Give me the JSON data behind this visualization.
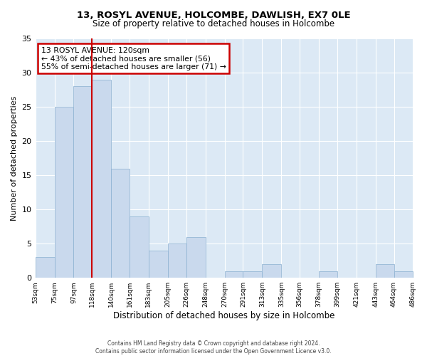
{
  "title": "13, ROSYL AVENUE, HOLCOMBE, DAWLISH, EX7 0LE",
  "subtitle": "Size of property relative to detached houses in Holcombe",
  "xlabel": "Distribution of detached houses by size in Holcombe",
  "ylabel": "Number of detached properties",
  "bin_edges": [
    53,
    75,
    97,
    118,
    140,
    161,
    183,
    205,
    226,
    248,
    270,
    291,
    313,
    335,
    356,
    378,
    399,
    421,
    443,
    464,
    486
  ],
  "bar_heights": [
    3,
    25,
    28,
    29,
    16,
    9,
    4,
    5,
    6,
    0,
    1,
    1,
    2,
    0,
    0,
    1,
    0,
    0,
    2,
    1
  ],
  "bar_color": "#c9d9ed",
  "bar_edgecolor": "#8ab0d0",
  "property_line_x": 118,
  "property_line_color": "#cc0000",
  "ylim": [
    0,
    35
  ],
  "yticks": [
    0,
    5,
    10,
    15,
    20,
    25,
    30,
    35
  ],
  "annotation_text": "13 ROSYL AVENUE: 120sqm\n← 43% of detached houses are smaller (56)\n55% of semi-detached houses are larger (71) →",
  "annotation_box_color": "#cc0000",
  "footer_text": "Contains HM Land Registry data © Crown copyright and database right 2024.\nContains public sector information licensed under the Open Government Licence v3.0.",
  "fig_background_color": "#ffffff",
  "plot_bg_color": "#dce9f5",
  "grid_color": "#ffffff",
  "tick_labels": [
    "53sqm",
    "75sqm",
    "97sqm",
    "118sqm",
    "140sqm",
    "161sqm",
    "183sqm",
    "205sqm",
    "226sqm",
    "248sqm",
    "270sqm",
    "291sqm",
    "313sqm",
    "335sqm",
    "356sqm",
    "378sqm",
    "399sqm",
    "421sqm",
    "443sqm",
    "464sqm",
    "486sqm"
  ]
}
